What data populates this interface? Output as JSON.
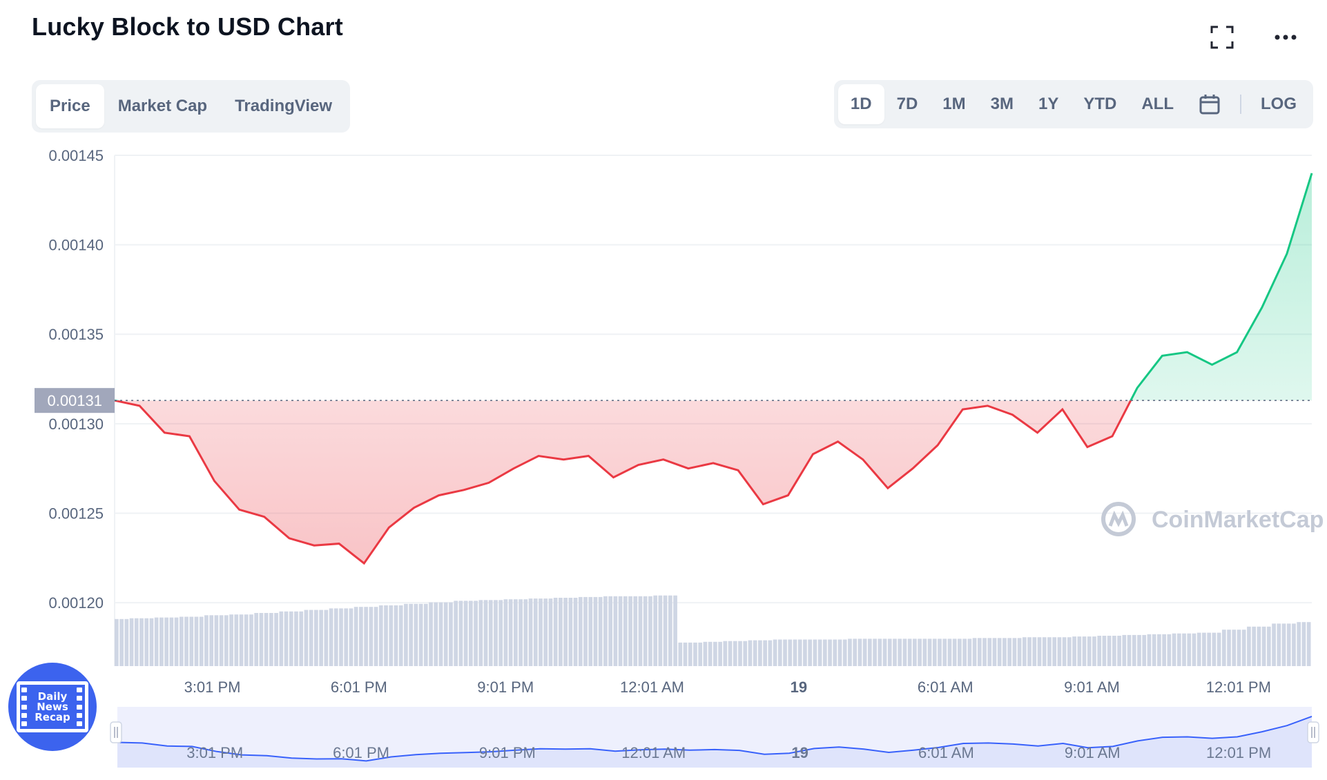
{
  "header": {
    "title": "Lucky Block to USD Chart",
    "fullscreen_icon": "fullscreen-icon",
    "more_icon": "more-horizontal-icon"
  },
  "tabs": [
    {
      "label": "Price",
      "active": true
    },
    {
      "label": "Market Cap",
      "active": false
    },
    {
      "label": "TradingView",
      "active": false
    }
  ],
  "ranges": [
    {
      "label": "1D",
      "active": true
    },
    {
      "label": "7D",
      "active": false
    },
    {
      "label": "1M",
      "active": false
    },
    {
      "label": "3M",
      "active": false
    },
    {
      "label": "1Y",
      "active": false
    },
    {
      "label": "YTD",
      "active": false
    },
    {
      "label": "ALL",
      "active": false
    }
  ],
  "range_extras": {
    "calendar_icon": "calendar-icon",
    "log_label": "LOG"
  },
  "watermark": "CoinMarketCap",
  "badge": {
    "line1": "Daily",
    "line2": "News",
    "line3": "Recap"
  },
  "colors": {
    "up": "#16c784",
    "down": "#ea3943",
    "volume": "#cfd6e4",
    "navigator_line": "#3861fb",
    "navigator_fill": "#eef0fd",
    "current_price_bg": "#a1a7bb"
  },
  "chart_data": {
    "type": "line",
    "title": "Lucky Block to USD Chart",
    "ylim": [
      0.00118,
      0.00145
    ],
    "yticks": [
      "0.00145",
      "0.00140",
      "0.00135",
      "0.00130",
      "0.00125",
      "0.00120"
    ],
    "current_price_label": "0.00131",
    "reference_price": 0.001313,
    "xtick_labels": [
      "3:01 PM",
      "6:01 PM",
      "9:01 PM",
      "12:01 AM",
      "19",
      "6:01 AM",
      "9:01 AM",
      "12:01 PM"
    ],
    "bold_xtick": "19",
    "grid": true,
    "x_hours": [
      0,
      0.5,
      1,
      1.5,
      2,
      2.5,
      3,
      3.5,
      4,
      4.5,
      5,
      5.5,
      6,
      6.5,
      7,
      7.5,
      8,
      8.5,
      9,
      9.5,
      10,
      10.5,
      11,
      11.5,
      12,
      12.5,
      13,
      13.5,
      14,
      14.5,
      15,
      15.5,
      16,
      16.5,
      17,
      17.5,
      18,
      18.5,
      19,
      19.5,
      20,
      20.5,
      21,
      21.5,
      22,
      22.5,
      23,
      23.5,
      24
    ],
    "series": [
      {
        "values": [
          0.001313,
          0.00131,
          0.001295,
          0.001293,
          0.001268,
          0.001252,
          0.001248,
          0.001236,
          0.001232,
          0.001233,
          0.001222,
          0.001242,
          0.001253,
          0.00126,
          0.001263,
          0.001267,
          0.001275,
          0.001282,
          0.00128,
          0.001282,
          0.00127,
          0.001277,
          0.00128,
          0.001275,
          0.001278,
          0.001274,
          0.001255,
          0.00126,
          0.001283,
          0.00129,
          0.00128,
          0.001264,
          0.001275,
          0.001288,
          0.001308,
          0.00131,
          0.001305,
          0.001295,
          0.001308,
          0.001287,
          0.001293,
          0.00132,
          0.001338,
          0.00134,
          0.001333,
          0.00134,
          0.001365,
          0.001395,
          0.00144
        ]
      }
    ],
    "volume_relative": [
      0.62,
      0.63,
      0.64,
      0.65,
      0.67,
      0.68,
      0.7,
      0.72,
      0.74,
      0.76,
      0.78,
      0.8,
      0.82,
      0.84,
      0.86,
      0.87,
      0.88,
      0.89,
      0.9,
      0.91,
      0.92,
      0.92,
      0.93,
      0.31,
      0.32,
      0.33,
      0.34,
      0.35,
      0.35,
      0.35,
      0.36,
      0.36,
      0.36,
      0.36,
      0.36,
      0.37,
      0.37,
      0.38,
      0.38,
      0.39,
      0.4,
      0.41,
      0.42,
      0.43,
      0.44,
      0.48,
      0.52,
      0.56,
      0.58
    ]
  }
}
